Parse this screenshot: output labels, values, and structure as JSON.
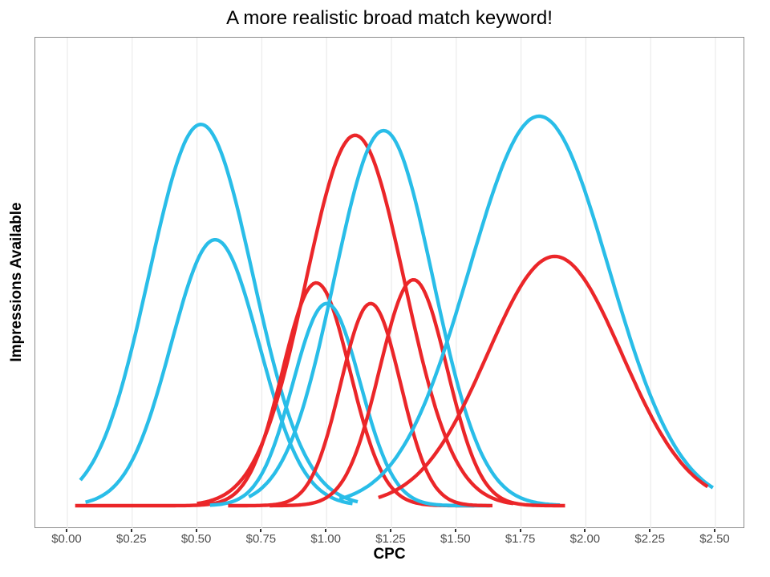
{
  "title": "A more realistic broad match keyword!",
  "x_axis": {
    "label": "CPC",
    "tick_labels": [
      "$0.00",
      "$0.25",
      "$0.50",
      "$0.75",
      "$1.00",
      "$1.25",
      "$1.50",
      "$1.75",
      "$2.00",
      "$2.25",
      "$2.50"
    ]
  },
  "y_axis": {
    "label": "Impressions Available",
    "tick_labels": []
  },
  "colors": {
    "red": "#eb2629",
    "cyan": "#29bde8",
    "gridline": "#ebebeb",
    "panel_border": "#8c8c8c",
    "tick_mark": "#333333",
    "tick_label": "#4d4d4d",
    "title_text": "#000000"
  },
  "chart_data": {
    "type": "line",
    "subtype": "normal-distribution-density-curves",
    "title": "A more realistic broad match keyword!",
    "xlabel": "CPC",
    "ylabel": "Impressions Available",
    "xlim": [
      -0.12,
      2.62
    ],
    "x_tick_values": [
      0,
      0.25,
      0.5,
      0.75,
      1.0,
      1.25,
      1.5,
      1.75,
      2.0,
      2.25,
      2.5
    ],
    "x_tick_labels": [
      "$0.00",
      "$0.25",
      "$0.50",
      "$0.75",
      "$1.00",
      "$1.25",
      "$1.50",
      "$1.75",
      "$2.00",
      "$2.25",
      "$2.50"
    ],
    "y_axis_ticks": "none (unlabeled relative impressions scale)",
    "grid": "vertical major gridlines only",
    "legend": "none",
    "series": [
      {
        "name": "cyan-curve-1",
        "color_key": "cyan",
        "mean_cpc": 0.515,
        "sd": 0.2,
        "peak_relative": 0.979,
        "x_range": [
          0.05,
          1.12
        ]
      },
      {
        "name": "cyan-curve-2",
        "color_key": "cyan",
        "mean_cpc": 0.57,
        "sd": 0.17,
        "peak_relative": 0.683,
        "x_range": [
          0.07,
          1.1
        ]
      },
      {
        "name": "red-curve-1",
        "color_key": "red",
        "mean_cpc": 0.96,
        "sd": 0.13,
        "peak_relative": 0.572,
        "x_range": [
          0.03,
          1.57
        ]
      },
      {
        "name": "red-curve-2",
        "color_key": "red",
        "mean_cpc": 1.11,
        "sd": 0.19,
        "peak_relative": 0.951,
        "x_range": [
          0.5,
          1.72
        ]
      },
      {
        "name": "cyan-curve-3",
        "color_key": "cyan",
        "mean_cpc": 1.0,
        "sd": 0.13,
        "peak_relative": 0.519,
        "x_range": [
          0.55,
          1.63
        ]
      },
      {
        "name": "red-curve-3",
        "color_key": "red",
        "mean_cpc": 1.17,
        "sd": 0.115,
        "peak_relative": 0.519,
        "x_range": [
          0.62,
          1.64
        ]
      },
      {
        "name": "cyan-curve-4",
        "color_key": "cyan",
        "mean_cpc": 1.22,
        "sd": 0.19,
        "peak_relative": 0.963,
        "x_range": [
          0.7,
          1.9
        ]
      },
      {
        "name": "red-curve-4",
        "color_key": "red",
        "mean_cpc": 1.335,
        "sd": 0.13,
        "peak_relative": 0.58,
        "x_range": [
          0.78,
          1.92
        ]
      },
      {
        "name": "cyan-curve-5",
        "color_key": "cyan",
        "mean_cpc": 1.82,
        "sd": 0.27,
        "peak_relative": 1.0,
        "x_range": [
          1.05,
          2.49
        ]
      },
      {
        "name": "red-curve-5",
        "color_key": "red",
        "mean_cpc": 1.88,
        "sd": 0.26,
        "peak_relative": 0.64,
        "x_range": [
          1.2,
          2.47
        ]
      }
    ]
  }
}
